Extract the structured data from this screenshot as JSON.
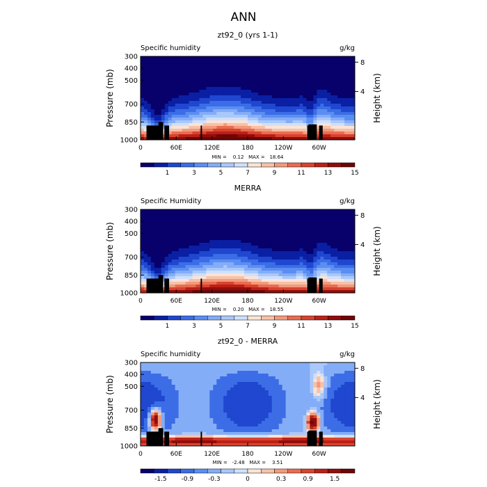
{
  "page_title": "ANN",
  "chart_data": [
    {
      "type": "heatmap",
      "title": "zt92_0 (yrs 1-1)",
      "field_label": "Specific humidity",
      "units": "g/kg",
      "ylabel_left": "Pressure (mb)",
      "ylabel_right": "Height (km)",
      "y_ticks": [
        "300",
        "400",
        "500",
        "700",
        "850",
        "1000"
      ],
      "y_values": [
        300,
        400,
        500,
        700,
        850,
        1000
      ],
      "ylim": [
        1000,
        300
      ],
      "height_ticks": [
        "8",
        "4"
      ],
      "height_values": [
        8,
        4
      ],
      "x_ticks": [
        "0",
        "60E",
        "120E",
        "180",
        "120W",
        "60W"
      ],
      "x_values": [
        0,
        60,
        120,
        180,
        240,
        300
      ],
      "xlim": [
        0,
        360
      ],
      "stats": "MIN =    0.12   MAX =   18.64",
      "min": 0.12,
      "max": 18.64,
      "colorbar_labels": [
        "1",
        "3",
        "5",
        "7",
        "9",
        "11",
        "13",
        "15"
      ],
      "colorbar_levels": [
        0,
        1,
        2,
        3,
        4,
        5,
        6,
        7,
        8,
        9,
        10,
        11,
        12,
        13,
        14,
        15,
        16
      ],
      "colormap": "diverging"
    },
    {
      "type": "heatmap",
      "title": "MERRA",
      "field_label": "Specific Humidity",
      "units": "g/kg",
      "ylabel_left": "Pressure (mb)",
      "ylabel_right": "Height (km)",
      "y_ticks": [
        "300",
        "400",
        "500",
        "700",
        "850",
        "1000"
      ],
      "y_values": [
        300,
        400,
        500,
        700,
        850,
        1000
      ],
      "ylim": [
        1000,
        300
      ],
      "height_ticks": [
        "8",
        "4"
      ],
      "height_values": [
        8,
        4
      ],
      "x_ticks": [
        "0",
        "60E",
        "120E",
        "180",
        "120W",
        "60W"
      ],
      "x_values": [
        0,
        60,
        120,
        180,
        240,
        300
      ],
      "xlim": [
        0,
        360
      ],
      "stats": "MIN =    0.20   MAX =   18.55",
      "min": 0.2,
      "max": 18.55,
      "colorbar_labels": [
        "1",
        "3",
        "5",
        "7",
        "9",
        "11",
        "13",
        "15"
      ],
      "colorbar_levels": [
        0,
        1,
        2,
        3,
        4,
        5,
        6,
        7,
        8,
        9,
        10,
        11,
        12,
        13,
        14,
        15,
        16
      ],
      "colormap": "diverging"
    },
    {
      "type": "heatmap",
      "title": "zt92_0 - MERRA",
      "field_label": "Specific humidity",
      "units": "g/kg",
      "ylabel_left": "Pressure (mb)",
      "ylabel_right": "Height (km)",
      "y_ticks": [
        "300",
        "400",
        "500",
        "700",
        "850",
        "1000"
      ],
      "y_values": [
        300,
        400,
        500,
        700,
        850,
        1000
      ],
      "ylim": [
        1000,
        300
      ],
      "height_ticks": [
        "8",
        "4"
      ],
      "height_values": [
        8,
        4
      ],
      "x_ticks": [
        "0",
        "60E",
        "120E",
        "180",
        "120W",
        "60W"
      ],
      "x_values": [
        0,
        60,
        120,
        180,
        240,
        300
      ],
      "xlim": [
        0,
        360
      ],
      "stats": "MIN =   -2.48   MAX =    3.51",
      "min": -2.48,
      "max": 3.51,
      "colorbar_labels": [
        "-1.5",
        "-0.9",
        "-0.3",
        "0",
        "0.3",
        "0.9",
        "1.5"
      ],
      "colorbar_levels": [
        -1.8,
        -1.5,
        -1.2,
        -0.9,
        -0.6,
        -0.3,
        -0.1,
        0,
        0.1,
        0.3,
        0.6,
        0.9,
        1.2,
        1.5,
        1.8
      ],
      "colormap": "diverging"
    }
  ],
  "palette": [
    "#08006b",
    "#0a1fa3",
    "#1f47cf",
    "#3c6de6",
    "#5b8ef2",
    "#84adf7",
    "#aac8fa",
    "#cfe0fc",
    "#fbe3d6",
    "#f7c1a8",
    "#f29a7c",
    "#e96d51",
    "#d9432e",
    "#bb2017",
    "#920c0b",
    "#6e0505"
  ]
}
